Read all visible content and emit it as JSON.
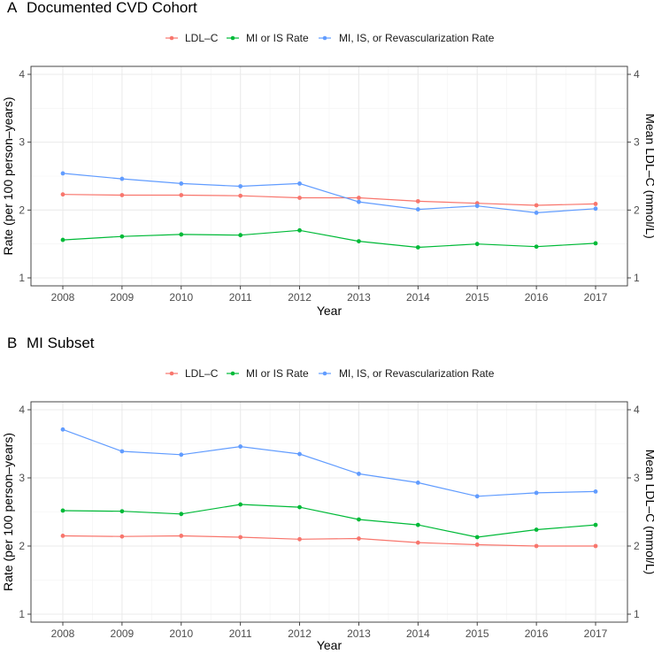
{
  "chart_data": [
    {
      "type": "line",
      "panel_label": "A",
      "title": "Documented CVD Cohort",
      "xlabel": "Year",
      "ylabel": "Rate (per 100 person–years)",
      "y2label": "Mean LDL–C (mmol/L)",
      "categories": [
        "2008",
        "2009",
        "2010",
        "2011",
        "2012",
        "2013",
        "2014",
        "2015",
        "2016",
        "2017"
      ],
      "ylim": [
        1,
        4
      ],
      "yticks": [
        "1",
        "2",
        "3",
        "4"
      ],
      "y2ticks": [
        "1",
        "2",
        "3",
        "4"
      ],
      "legend_position": "top",
      "series": [
        {
          "name": "LDL–C",
          "color": "#F8766D",
          "values": [
            2.23,
            2.22,
            2.22,
            2.21,
            2.18,
            2.18,
            2.13,
            2.1,
            2.07,
            2.09
          ]
        },
        {
          "name": "MI or IS Rate",
          "color": "#00BA38",
          "values": [
            1.56,
            1.61,
            1.64,
            1.63,
            1.7,
            1.54,
            1.45,
            1.5,
            1.46,
            1.51
          ]
        },
        {
          "name": "MI, IS, or Revascularization Rate",
          "color": "#619CFF",
          "values": [
            2.54,
            2.46,
            2.39,
            2.35,
            2.39,
            2.12,
            2.01,
            2.06,
            1.96,
            2.02
          ]
        }
      ]
    },
    {
      "type": "line",
      "panel_label": "B",
      "title": "MI Subset",
      "xlabel": "Year",
      "ylabel": "Rate (per 100 person–years)",
      "y2label": "Mean LDL–C (mmol/L)",
      "categories": [
        "2008",
        "2009",
        "2010",
        "2011",
        "2012",
        "2013",
        "2014",
        "2015",
        "2016",
        "2017"
      ],
      "ylim": [
        1,
        4
      ],
      "yticks": [
        "1",
        "2",
        "3",
        "4"
      ],
      "y2ticks": [
        "1",
        "2",
        "3",
        "4"
      ],
      "legend_position": "top",
      "series": [
        {
          "name": "LDL–C",
          "color": "#F8766D",
          "values": [
            2.15,
            2.14,
            2.15,
            2.13,
            2.1,
            2.11,
            2.05,
            2.02,
            2.0,
            2.0
          ]
        },
        {
          "name": "MI or IS Rate",
          "color": "#00BA38",
          "values": [
            2.52,
            2.51,
            2.47,
            2.61,
            2.57,
            2.39,
            2.31,
            2.13,
            2.24,
            2.31
          ]
        },
        {
          "name": "MI, IS, or Revascularization Rate",
          "color": "#619CFF",
          "values": [
            3.71,
            3.39,
            3.34,
            3.46,
            3.35,
            3.06,
            2.93,
            2.73,
            2.78,
            2.8
          ]
        }
      ]
    }
  ]
}
